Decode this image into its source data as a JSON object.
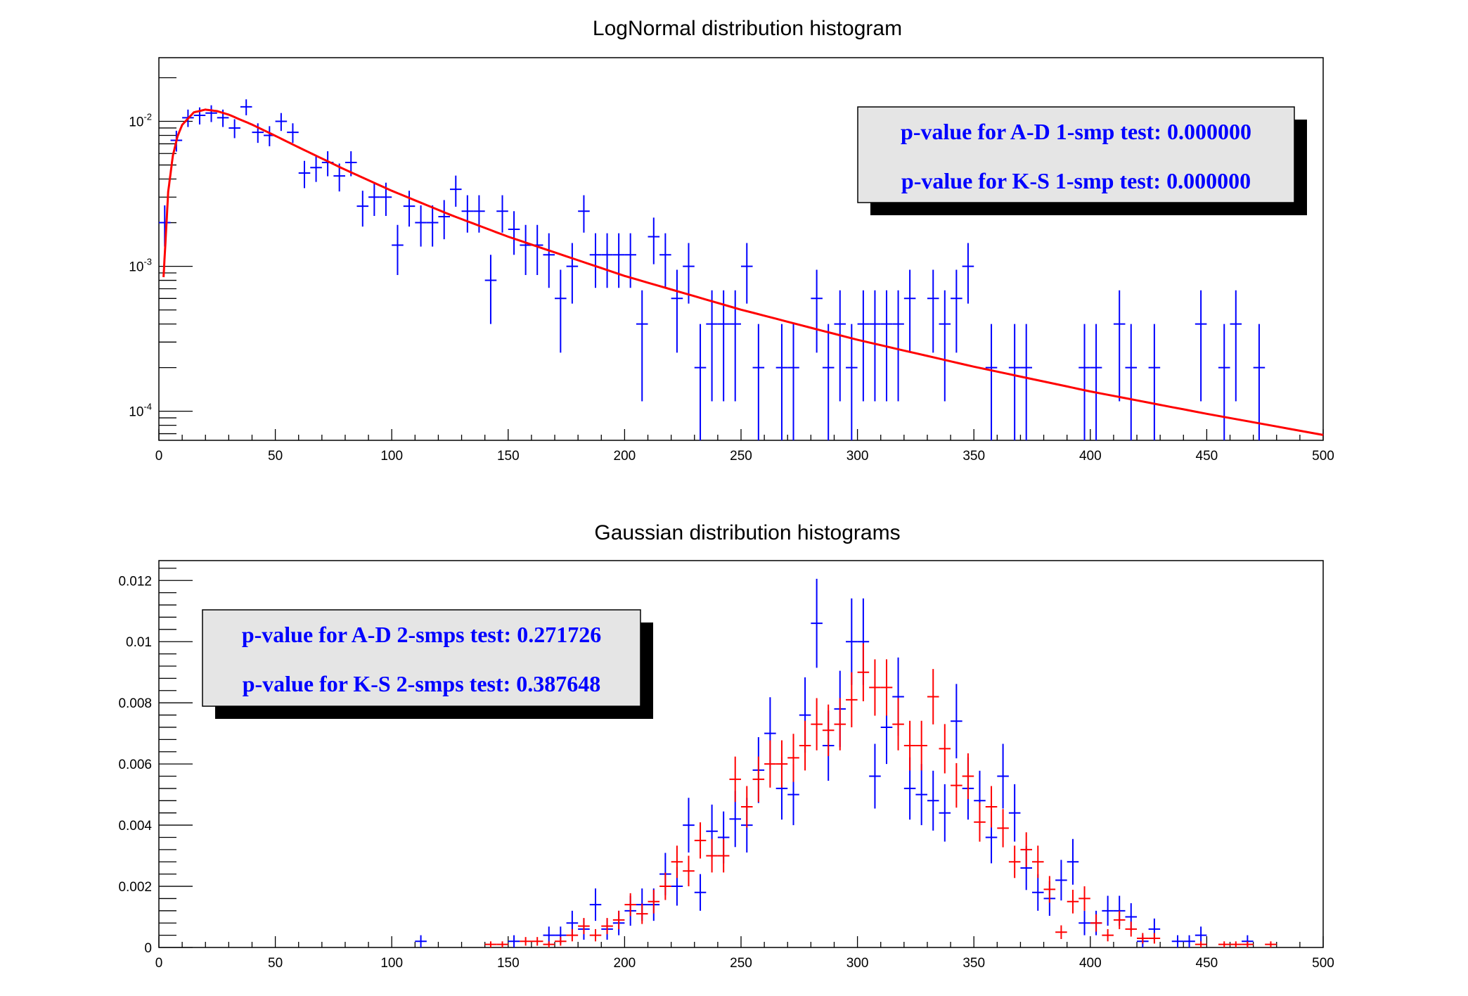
{
  "chart_data": [
    {
      "type": "scatter",
      "title": "LogNormal distribution histogram",
      "xlim": [
        0,
        500
      ],
      "ylim": [
        6.3e-05,
        0.0275
      ],
      "ylog": true,
      "bin_width": 5,
      "x_ticks": [
        "0",
        "50",
        "100",
        "150",
        "200",
        "250",
        "300",
        "350",
        "400",
        "450",
        "500"
      ],
      "y_ticks": [
        {
          "value": 0.01,
          "base": "10",
          "exp": "-2"
        },
        {
          "value": 0.001,
          "base": "10",
          "exp": "-3"
        },
        {
          "value": 0.0001,
          "base": "10",
          "exp": "-4"
        }
      ],
      "grid": false,
      "colors": {
        "histogram": "#0000ff",
        "curve": "#ff0000",
        "box_text": "#0000ff",
        "box_fill": "#e5e5e5"
      },
      "histogram": {
        "x": [
          2.5,
          7.5,
          12.5,
          17.5,
          22.5,
          27.5,
          32.5,
          37.5,
          42.5,
          47.5,
          52.5,
          57.5,
          62.5,
          67.5,
          72.5,
          77.5,
          82.5,
          87.5,
          92.5,
          97.5,
          102.5,
          107.5,
          112.5,
          117.5,
          122.5,
          127.5,
          132.5,
          137.5,
          142.5,
          147.5,
          152.5,
          157.5,
          162.5,
          167.5,
          172.5,
          177.5,
          182.5,
          187.5,
          192.5,
          197.5,
          202.5,
          207.5,
          212.5,
          217.5,
          222.5,
          227.5,
          232.5,
          237.5,
          242.5,
          247.5,
          252.5,
          257.5,
          267.5,
          272.5,
          282.5,
          287.5,
          292.5,
          297.5,
          302.5,
          307.5,
          312.5,
          317.5,
          322.5,
          332.5,
          337.5,
          342.5,
          347.5,
          357.5,
          367.5,
          372.5,
          397.5,
          402.5,
          412.5,
          417.5,
          427.5,
          447.5,
          457.5,
          462.5,
          472.5
        ],
        "y": [
          0.002,
          0.0074,
          0.0106,
          0.011,
          0.0114,
          0.0106,
          0.009,
          0.0126,
          0.0084,
          0.008,
          0.01,
          0.0084,
          0.0044,
          0.0048,
          0.0052,
          0.0042,
          0.0052,
          0.0026,
          0.003,
          0.003,
          0.0014,
          0.0026,
          0.002,
          0.002,
          0.0022,
          0.0034,
          0.0024,
          0.0024,
          0.0008,
          0.0024,
          0.0018,
          0.0014,
          0.0014,
          0.0012,
          0.0006,
          0.001,
          0.0024,
          0.0012,
          0.0012,
          0.0012,
          0.0012,
          0.0004,
          0.0016,
          0.0012,
          0.0006,
          0.001,
          0.0002,
          0.0004,
          0.0004,
          0.0004,
          0.001,
          0.0002,
          0.0002,
          0.0002,
          0.0006,
          0.0002,
          0.0004,
          0.0002,
          0.0004,
          0.0004,
          0.0004,
          0.0004,
          0.0006,
          0.0006,
          0.0004,
          0.0006,
          0.001,
          0.0002,
          0.0002,
          0.0002,
          0.0002,
          0.0002,
          0.0004,
          0.0002,
          0.0002,
          0.0004,
          0.0002,
          0.0004,
          0.0002
        ]
      },
      "curve": {
        "x": [
          2,
          4,
          6,
          8,
          10,
          15,
          20,
          25,
          30,
          40,
          50,
          60,
          80,
          100,
          125,
          150,
          200,
          250,
          300,
          350,
          400,
          450,
          500
        ],
        "y": [
          0.000842,
          0.00327,
          0.0058,
          0.00788,
          0.00946,
          0.01154,
          0.01205,
          0.01176,
          0.01112,
          0.0095,
          0.00795,
          0.00662,
          0.00464,
          0.00332,
          0.00227,
          0.0016,
          0.000858,
          0.000502,
          0.000311,
          0.000203,
          0.000137,
          9.6e-05,
          6.86e-05
        ]
      },
      "stats_box": {
        "lines": [
          "p-value for A-D 1-smp test: 0.000000",
          "p-value for K-S 1-smp test: 0.000000"
        ],
        "placement": "top-right"
      }
    },
    {
      "type": "scatter",
      "title": "Gaussian distribution histograms",
      "xlim": [
        0,
        500
      ],
      "ylim": [
        0,
        0.01265
      ],
      "ylog": false,
      "bin_width": 5,
      "x_ticks": [
        "0",
        "50",
        "100",
        "150",
        "200",
        "250",
        "300",
        "350",
        "400",
        "450",
        "500"
      ],
      "y_ticks": [
        {
          "value": 0,
          "label": "0"
        },
        {
          "value": 0.002,
          "label": "0.002"
        },
        {
          "value": 0.004,
          "label": "0.004"
        },
        {
          "value": 0.006,
          "label": "0.006"
        },
        {
          "value": 0.008,
          "label": "0.008"
        },
        {
          "value": 0.01,
          "label": "0.01"
        },
        {
          "value": 0.012,
          "label": "0.012"
        }
      ],
      "grid": false,
      "series": [
        {
          "color": "#0000ff",
          "x": [
            112.5,
            152.5,
            167.5,
            172.5,
            177.5,
            182.5,
            187.5,
            192.5,
            197.5,
            202.5,
            207.5,
            212.5,
            217.5,
            222.5,
            227.5,
            232.5,
            237.5,
            242.5,
            247.5,
            252.5,
            257.5,
            262.5,
            267.5,
            272.5,
            277.5,
            282.5,
            287.5,
            292.5,
            297.5,
            302.5,
            307.5,
            312.5,
            317.5,
            322.5,
            327.5,
            332.5,
            337.5,
            342.5,
            347.5,
            352.5,
            357.5,
            362.5,
            367.5,
            372.5,
            377.5,
            382.5,
            387.5,
            392.5,
            397.5,
            402.5,
            407.5,
            412.5,
            417.5,
            422.5,
            427.5,
            437.5,
            442.5,
            447.5,
            467.5
          ],
          "y": [
            0.0002,
            0.0002,
            0.0004,
            0.0004,
            0.0008,
            0.0006,
            0.0014,
            0.0006,
            0.0008,
            0.0012,
            0.0014,
            0.0014,
            0.0024,
            0.002,
            0.004,
            0.0018,
            0.0038,
            0.0036,
            0.0042,
            0.004,
            0.0058,
            0.007,
            0.0052,
            0.005,
            0.0076,
            0.0106,
            0.0066,
            0.0078,
            0.01,
            0.01,
            0.0056,
            0.0072,
            0.0082,
            0.0052,
            0.005,
            0.0048,
            0.0044,
            0.0074,
            0.0052,
            0.0048,
            0.0036,
            0.0056,
            0.0044,
            0.0026,
            0.0018,
            0.0016,
            0.0022,
            0.0028,
            0.0008,
            0.0008,
            0.0012,
            0.0012,
            0.001,
            0.0002,
            0.0006,
            0.0002,
            0.0002,
            0.0004,
            0.0002
          ]
        },
        {
          "color": "#ff0000",
          "x": [
            142.5,
            147.5,
            157.5,
            162.5,
            167.5,
            172.5,
            177.5,
            182.5,
            187.5,
            192.5,
            197.5,
            202.5,
            207.5,
            212.5,
            217.5,
            222.5,
            227.5,
            232.5,
            237.5,
            242.5,
            247.5,
            252.5,
            257.5,
            262.5,
            267.5,
            272.5,
            277.5,
            282.5,
            287.5,
            292.5,
            297.5,
            302.5,
            307.5,
            312.5,
            317.5,
            322.5,
            327.5,
            332.5,
            337.5,
            342.5,
            347.5,
            352.5,
            357.5,
            362.5,
            367.5,
            372.5,
            377.5,
            382.5,
            387.5,
            392.5,
            397.5,
            402.5,
            407.5,
            412.5,
            417.5,
            422.5,
            427.5,
            447.5,
            457.5,
            462.5,
            467.5,
            477.5
          ],
          "y": [
            0.0001,
            0.0001,
            0.0002,
            0.0002,
            0.0001,
            0.0002,
            0.0004,
            0.0007,
            0.0004,
            0.0007,
            0.0009,
            0.0014,
            0.0011,
            0.0015,
            0.002,
            0.0028,
            0.0025,
            0.0035,
            0.003,
            0.003,
            0.0055,
            0.0046,
            0.0055,
            0.006,
            0.006,
            0.0062,
            0.0066,
            0.0073,
            0.0071,
            0.0073,
            0.0081,
            0.009,
            0.0085,
            0.0085,
            0.0073,
            0.0066,
            0.0066,
            0.0082,
            0.0065,
            0.0053,
            0.0056,
            0.0041,
            0.0046,
            0.0039,
            0.0028,
            0.0032,
            0.0028,
            0.0019,
            0.0005,
            0.0015,
            0.0016,
            0.0008,
            0.0004,
            0.0009,
            0.0006,
            0.0003,
            0.0003,
            0.0001,
            0.0001,
            0.0001,
            0.0001,
            0.0001
          ]
        }
      ],
      "stats_box": {
        "lines": [
          "p-value for A-D 2-smps test: 0.271726",
          "p-value for K-S 2-smps test: 0.387648"
        ],
        "placement": "top-left"
      }
    }
  ]
}
